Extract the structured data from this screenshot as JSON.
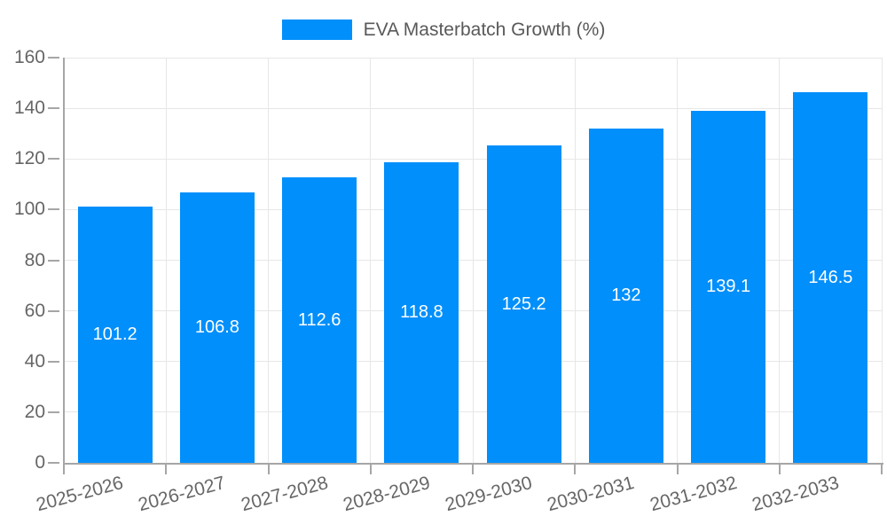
{
  "chart_data": {
    "type": "bar",
    "title": "",
    "series_name": "EVA Masterbatch Growth (%)",
    "legend_position": "top",
    "categories": [
      "2025-2026",
      "2026-2027",
      "2027-2028",
      "2028-2029",
      "2029-2030",
      "2030-2031",
      "2031-2032",
      "2032-2033"
    ],
    "values": [
      101.2,
      106.8,
      112.6,
      118.8,
      125.2,
      132,
      139.1,
      146.5
    ],
    "value_labels": [
      "101.2",
      "106.8",
      "112.6",
      "118.8",
      "125.2",
      "132",
      "139.1",
      "146.5"
    ],
    "xlabel": "",
    "ylabel": "",
    "ylim": [
      0,
      160
    ],
    "yticks": [
      0,
      20,
      40,
      60,
      80,
      100,
      120,
      140,
      160
    ],
    "grid": true,
    "value_labels_inside": true,
    "x_label_rotation_deg": -15,
    "colors": {
      "bar": "#008FFB",
      "grid": "#e7e7e7",
      "axis": "#a6a6a6",
      "tick_text": "#666666",
      "legend_text": "#595959",
      "value_text": "#ffffff",
      "background": "#ffffff"
    }
  }
}
